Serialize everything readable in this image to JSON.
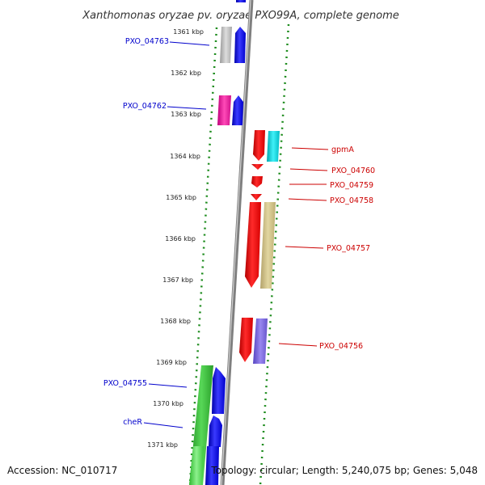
{
  "title": "Xanthomonas oryzae pv. oryzae PXO99A, complete genome",
  "footer": {
    "accession": "Accession: NC_010717",
    "summary": "Topology: circular; Length: 5,240,075 bp; Genes: 5,048"
  },
  "kbp_ticks": [
    "1361 kbp",
    "1362 kbp",
    "1363 kbp",
    "1364 kbp",
    "1365 kbp",
    "1366 kbp",
    "1367 kbp",
    "1368 kbp",
    "1369 kbp",
    "1370 kbp",
    "1371 kbp"
  ],
  "left_labels": [
    "PXO_04763",
    "PXO_04762",
    "PXO_04755",
    "cheR"
  ],
  "right_labels": [
    "gpmA",
    "PXO_04760",
    "PXO_04759",
    "PXO_04758",
    "PXO_04757",
    "PXO_04756"
  ],
  "colors": {
    "blue_label": "#0000cc",
    "red_label": "#cc0000",
    "ruler": "#1a8a1a",
    "backbone": "#8a8a8a"
  }
}
